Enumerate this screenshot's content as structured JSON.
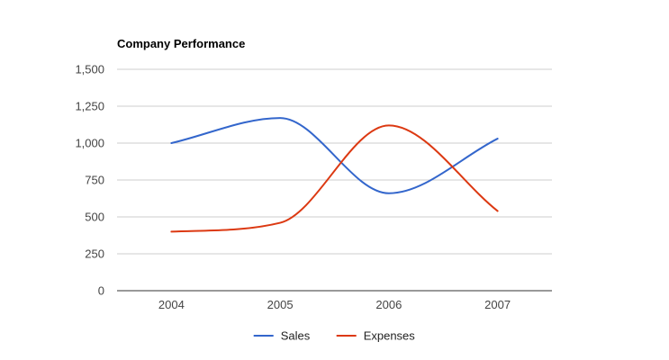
{
  "chart_data": {
    "type": "line",
    "title": "Company Performance",
    "xlabel": "",
    "ylabel": "",
    "categories": [
      "2004",
      "2005",
      "2006",
      "2007"
    ],
    "ylim": [
      0,
      1500
    ],
    "yticks": [
      0,
      250,
      500,
      750,
      1000,
      1250,
      1500
    ],
    "ytick_labels": [
      "0",
      "250",
      "500",
      "750",
      "1,000",
      "1,250",
      "1,500"
    ],
    "grid": true,
    "legend_position": "bottom",
    "smooth": true,
    "series": [
      {
        "name": "Sales",
        "values": [
          1000,
          1170,
          660,
          1030
        ],
        "color": "#3366cc"
      },
      {
        "name": "Expenses",
        "values": [
          400,
          460,
          1120,
          540
        ],
        "color": "#dc3912"
      }
    ]
  }
}
